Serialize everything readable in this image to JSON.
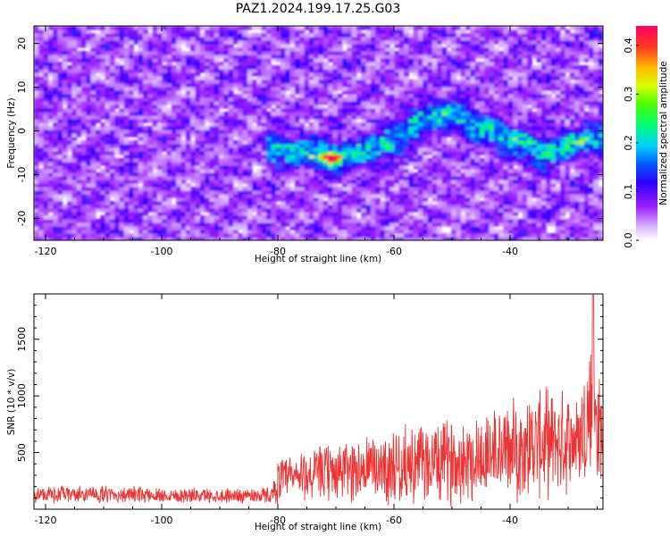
{
  "figure": {
    "title": "PAZ1.2024.199.17.25.G03"
  },
  "chart_data": [
    {
      "type": "heatmap",
      "title": "PAZ1.2024.199.17.25.G03",
      "xlabel": "Height of straight line (km)",
      "ylabel": "Frequency (Hz)",
      "xlim": [
        -122,
        -24
      ],
      "ylim": [
        -25,
        24
      ],
      "x_ticks": [
        -120,
        -100,
        -80,
        -60,
        -40
      ],
      "y_ticks": [
        -20,
        -10,
        0,
        10,
        20
      ],
      "colorbar": {
        "label": "Normalized spectral amplitude",
        "range": [
          0.0,
          0.44
        ],
        "ticks": [
          0.0,
          0.1,
          0.2,
          0.3,
          0.4
        ],
        "colormap": [
          "#ffffff",
          "#d9b3ff",
          "#8f00ff",
          "#0000ff",
          "#00c0ff",
          "#00ff40",
          "#c8ff00",
          "#ffd000",
          "#ff3030",
          "#ff0060"
        ]
      },
      "peak_ridge": {
        "description": "high-amplitude band",
        "x": [
          -80,
          -75,
          -70,
          -65,
          -60,
          -55,
          -50,
          -45,
          -40,
          -35,
          -30,
          -26
        ],
        "y": [
          -4,
          -5,
          -6,
          -5,
          -2,
          3,
          4,
          1,
          -2,
          -5,
          -3,
          -2
        ]
      },
      "max_amplitude_point": {
        "x": -71,
        "y": -6,
        "value": 0.44
      }
    },
    {
      "type": "line",
      "xlabel": "Height of straight line (km)",
      "ylabel": "SNR (10 * v/v)",
      "xlim": [
        -122,
        -24
      ],
      "ylim": [
        0,
        1900
      ],
      "x_ticks": [
        -120,
        -100,
        -80,
        -60,
        -40
      ],
      "y_ticks": [
        500,
        1000,
        1500
      ],
      "color": "#ee3333",
      "envelope": {
        "x": [
          -122,
          -110,
          -100,
          -90,
          -81,
          -80,
          -75,
          -70,
          -65,
          -60,
          -55,
          -50,
          -45,
          -40,
          -35,
          -30,
          -28,
          -26,
          -25,
          -24
        ],
        "mean": [
          130,
          130,
          125,
          120,
          125,
          250,
          300,
          330,
          360,
          380,
          400,
          430,
          470,
          520,
          580,
          600,
          620,
          900,
          700,
          650
        ],
        "amplitude": [
          70,
          70,
          65,
          60,
          70,
          180,
          220,
          250,
          280,
          310,
          330,
          350,
          380,
          400,
          450,
          420,
          400,
          700,
          500,
          400
        ]
      },
      "peak": {
        "x": -25.7,
        "y": 1890
      }
    }
  ]
}
